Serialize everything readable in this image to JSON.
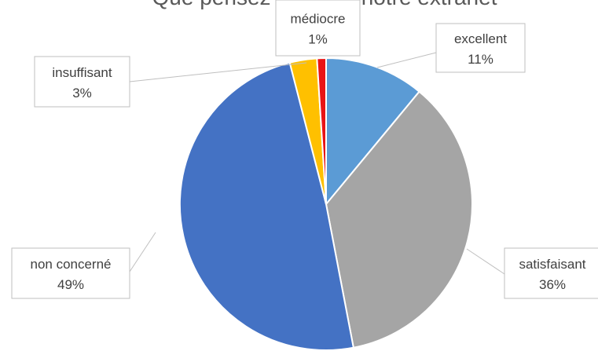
{
  "chart_data": {
    "type": "pie",
    "title": "Que pensez-vous de notre extranet",
    "categories": [
      "excellent",
      "satisfaisant",
      "non concerné",
      "insuffisant",
      "médiocre"
    ],
    "values": [
      11,
      36,
      49,
      3,
      1
    ],
    "value_labels": [
      "11%",
      "36%",
      "49%",
      "3%",
      "1%"
    ],
    "colors": [
      "#5b9bd5",
      "#a5a5a5",
      "#4472c4",
      "#ffc000",
      "#e81416"
    ],
    "data_labels": "category name and percentage in callout boxes",
    "legend": "none"
  }
}
